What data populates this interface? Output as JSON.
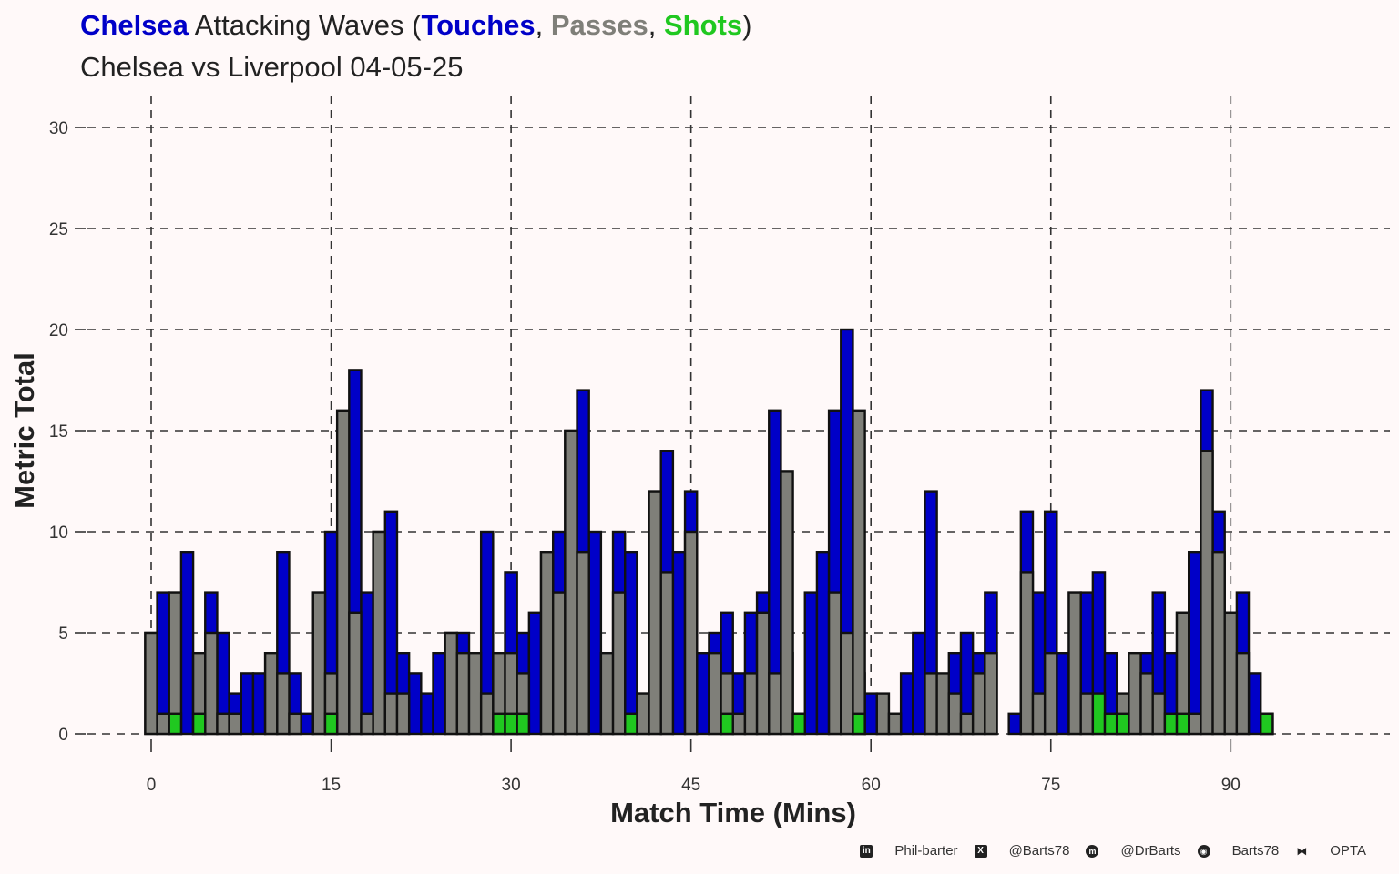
{
  "header": {
    "title_team": "Chelsea",
    "title_mid": " Attacking Waves (",
    "title_touches": "Touches",
    "sep1": ", ",
    "title_passes": "Passes",
    "sep2": ", ",
    "title_shots": "Shots",
    "title_end": ")",
    "subtitle": "Chelsea vs Liverpool 04-05-25"
  },
  "colors": {
    "touches": "#0000c8",
    "passes": "#7f7f79",
    "shots": "#20c820",
    "team": "#0000c8",
    "background": "#fff9f9"
  },
  "footer": {
    "credits": [
      {
        "icon": "linkedin-icon",
        "glyph": "in",
        "text": "Phil-barter"
      },
      {
        "icon": "x-twitter-icon",
        "glyph": "X",
        "text": "@Barts78"
      },
      {
        "icon": "mastodon-icon",
        "glyph": "m",
        "text": "@DrBarts"
      },
      {
        "icon": "github-icon",
        "glyph": "◉",
        "text": "Barts78"
      },
      {
        "icon": "dropbox-icon",
        "glyph": "⧓",
        "text": "OPTA"
      }
    ]
  },
  "chart_data": {
    "type": "bar",
    "xlabel": "Match Time (Mins)",
    "ylabel": "Metric Total",
    "xlim": [
      -1,
      99
    ],
    "ylim": [
      0,
      30
    ],
    "xticks": [
      0,
      15,
      30,
      45,
      60,
      75,
      90
    ],
    "yticks": [
      0,
      5,
      10,
      15,
      20,
      25,
      30
    ],
    "grid": true,
    "series": [
      {
        "name": "Touches",
        "key": "touches",
        "color": "#0000c8",
        "values": [
          5,
          7,
          7,
          9,
          4,
          7,
          5,
          2,
          3,
          3,
          4,
          9,
          3,
          1,
          7,
          10,
          7,
          18,
          7,
          10,
          11,
          4,
          3,
          2,
          4,
          5,
          5,
          4,
          10,
          4,
          8,
          5,
          6,
          9,
          10,
          15,
          17,
          10,
          4,
          10,
          9,
          2,
          12,
          14,
          9,
          12,
          4,
          5,
          6,
          3,
          6,
          7,
          16,
          4,
          0,
          7,
          9,
          16,
          20,
          3,
          2,
          1,
          1,
          3,
          5,
          12,
          2,
          4,
          5,
          4,
          7,
          0,
          1,
          11,
          7,
          11,
          4,
          7,
          7,
          8,
          4,
          1,
          2,
          4,
          7,
          4,
          6,
          9,
          17,
          11,
          6,
          7,
          3,
          1
        ]
      },
      {
        "name": "Passes",
        "key": "passes",
        "color": "#7f7f79",
        "values": [
          5,
          1,
          7,
          0,
          4,
          5,
          1,
          1,
          0,
          0,
          4,
          3,
          1,
          0,
          7,
          3,
          16,
          6,
          1,
          10,
          2,
          2,
          0,
          0,
          0,
          5,
          4,
          4,
          2,
          4,
          4,
          3,
          0,
          9,
          7,
          15,
          9,
          0,
          4,
          7,
          0,
          2,
          12,
          8,
          0,
          10,
          0,
          4,
          3,
          1,
          3,
          6,
          3,
          13,
          1,
          0,
          0,
          7,
          5,
          16,
          0,
          2,
          1,
          0,
          0,
          3,
          3,
          2,
          1,
          3,
          4,
          0,
          0,
          8,
          2,
          4,
          0,
          7,
          2,
          0,
          0,
          2,
          4,
          3,
          2,
          0,
          6,
          1,
          14,
          9,
          6,
          4,
          0,
          1
        ]
      },
      {
        "name": "Shots",
        "key": "shots",
        "color": "#20c820",
        "values": [
          0,
          0,
          1,
          0,
          1,
          0,
          0,
          0,
          0,
          0,
          0,
          0,
          0,
          0,
          0,
          1,
          0,
          0,
          0,
          0,
          0,
          0,
          0,
          0,
          0,
          0,
          0,
          0,
          0,
          1,
          1,
          1,
          0,
          0,
          0,
          0,
          0,
          0,
          0,
          0,
          1,
          0,
          0,
          0,
          0,
          0,
          0,
          0,
          1,
          0,
          0,
          0,
          0,
          0,
          1,
          0,
          0,
          0,
          0,
          1,
          0,
          0,
          0,
          0,
          0,
          0,
          0,
          0,
          0,
          0,
          0,
          0,
          0,
          0,
          0,
          0,
          0,
          0,
          0,
          2,
          1,
          1,
          0,
          0,
          0,
          1,
          1,
          0,
          0,
          0,
          0,
          0,
          0,
          1
        ]
      }
    ]
  }
}
